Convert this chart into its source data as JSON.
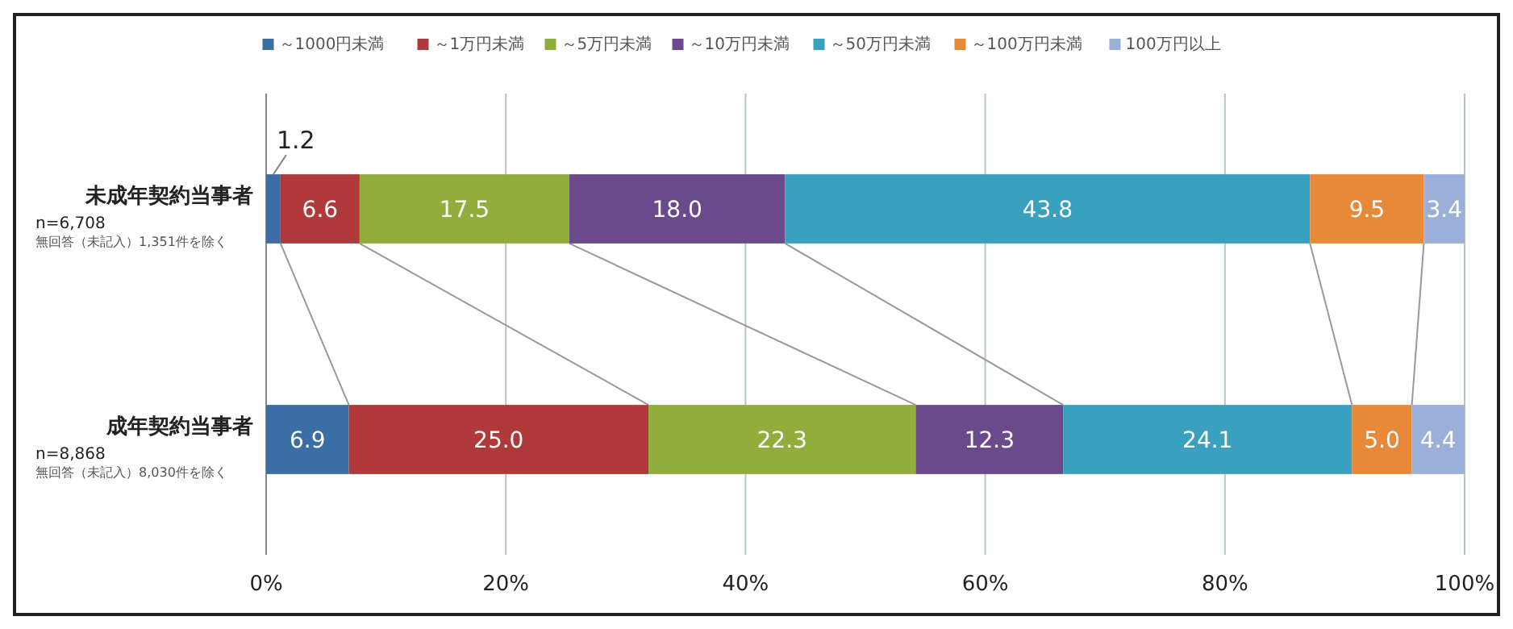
{
  "chart_data": {
    "type": "bar",
    "orientation": "horizontal",
    "stacked": true,
    "categories": [
      "未成年契約当事者\nn=6,708\n無回答（未記入）1,351件を除く",
      "成年契約当事者\nn=8,868\n無回答（未記入）8,030件を除く"
    ],
    "xlim": [
      0,
      100
    ],
    "xticks": [
      {
        "value": 0,
        "label": "0%"
      },
      {
        "value": 20,
        "label": "20%"
      },
      {
        "value": 40,
        "label": "40%"
      },
      {
        "value": 60,
        "label": "60%"
      },
      {
        "value": 80,
        "label": "80%"
      },
      {
        "value": 100,
        "label": "100%"
      }
    ],
    "grid": "x",
    "legend": "top",
    "data_labels": true,
    "series": [
      {
        "name": "～1000円未満",
        "color": "#3a6ea5",
        "values": [
          1.2,
          6.9
        ],
        "value_labels": [
          "1.2",
          "6.9"
        ]
      },
      {
        "name": "～1万円未満",
        "color": "#b03a3a",
        "values": [
          6.6,
          25.0
        ],
        "value_labels": [
          "6.6",
          "25.0"
        ]
      },
      {
        "name": "～5万円未満",
        "color": "#8fae3c",
        "values": [
          17.5,
          22.3
        ],
        "value_labels": [
          "17.5",
          "22.3"
        ]
      },
      {
        "name": "～10万円未満",
        "color": "#6a4a8c",
        "values": [
          18.0,
          12.3
        ],
        "value_labels": [
          "18.0",
          "12.3"
        ]
      },
      {
        "name": "～50万円未満",
        "color": "#3aa0c0",
        "values": [
          43.8,
          24.1
        ],
        "value_labels": [
          "43.8",
          "24.1"
        ]
      },
      {
        "name": "～100万円未満",
        "color": "#e8893a",
        "values": [
          9.5,
          5.0
        ],
        "value_labels": [
          "9.5",
          "5.0"
        ]
      },
      {
        "name": "100万円以上",
        "color": "#9ab0d8",
        "values": [
          3.4,
          4.4
        ],
        "value_labels": [
          "3.4",
          "4.4"
        ]
      }
    ]
  }
}
